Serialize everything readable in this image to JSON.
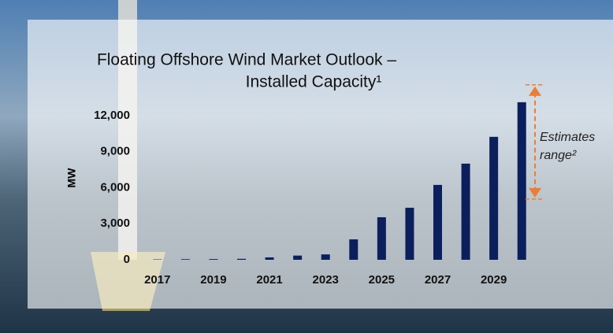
{
  "chart_data": {
    "type": "bar",
    "title": [
      "Floating Offshore Wind Market Outlook –",
      "Installed Capacity¹"
    ],
    "y_label": "MW",
    "categories": [
      "2017",
      null,
      "2019",
      null,
      "2021",
      null,
      "2023",
      null,
      "2025",
      null,
      "2027",
      null,
      "2029",
      null
    ],
    "values": [
      30,
      50,
      60,
      80,
      200,
      350,
      450,
      1700,
      3540,
      4330,
      6230,
      8000,
      10230,
      13110
    ],
    "color": "#0b1f5c",
    "ylim": [
      0,
      15000
    ],
    "yticks": [
      0,
      {
        "value": 3000,
        "label": "3,000"
      },
      {
        "value": 6000,
        "label": "6,000"
      },
      {
        "value": 9000,
        "label": "9,000"
      },
      {
        "value": 12000,
        "label": "12,000"
      }
    ],
    "grid": false,
    "estimates_range": {
      "label": [
        "Estimates",
        "range²"
      ],
      "low": 5050,
      "high": 14560,
      "color": "#ed7d31"
    }
  }
}
